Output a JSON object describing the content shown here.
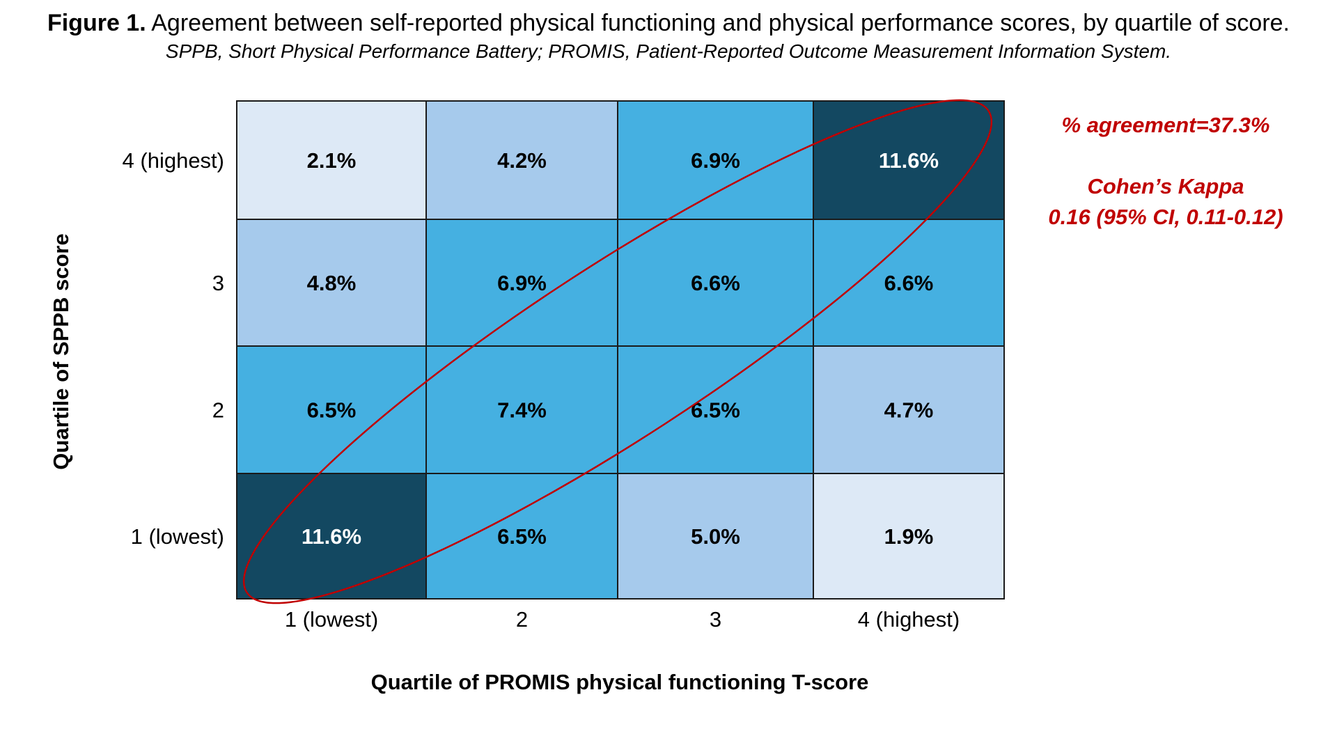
{
  "caption": {
    "figure_label": "Figure 1.",
    "title": "Agreement between self-reported physical functioning and physical performance scores, by quartile of score.",
    "subtitle": "SPPB, Short Physical Performance Battery; PROMIS, Patient-Reported Outcome Measurement Information System."
  },
  "annotations": {
    "agreement": "% agreement=37.3%",
    "kappa_label": "Cohen’s Kappa",
    "kappa_value": "0.16 (95% CI, 0.11-0.12)",
    "color": "#c00000"
  },
  "chart_data": {
    "type": "heatmap",
    "xlabel": "Quartile of PROMIS physical functioning T-score",
    "ylabel": "Quartile of SPPB score",
    "x_categories": [
      "1 (lowest)",
      "2",
      "3",
      "4 (highest)"
    ],
    "y_categories": [
      "4 (highest)",
      "3",
      "2",
      "1 (lowest)"
    ],
    "values": [
      [
        2.1,
        4.2,
        6.9,
        11.6
      ],
      [
        4.8,
        6.9,
        6.6,
        6.6
      ],
      [
        6.5,
        7.4,
        6.5,
        4.7
      ],
      [
        11.6,
        6.5,
        5.0,
        1.9
      ]
    ],
    "value_labels": [
      [
        "2.1%",
        "4.2%",
        "6.9%",
        "11.6%"
      ],
      [
        "4.8%",
        "6.9%",
        "6.6%",
        "6.6%"
      ],
      [
        "6.5%",
        "7.4%",
        "6.5%",
        "4.7%"
      ],
      [
        "11.6%",
        "6.5%",
        "5.0%",
        "1.9%"
      ]
    ],
    "colors": {
      "very_low": "#dde9f6",
      "low": "#a6caec",
      "mid": "#45b0e1",
      "high": "#134861"
    },
    "highlight": "diagonal ellipse around equal-quartile cells"
  }
}
